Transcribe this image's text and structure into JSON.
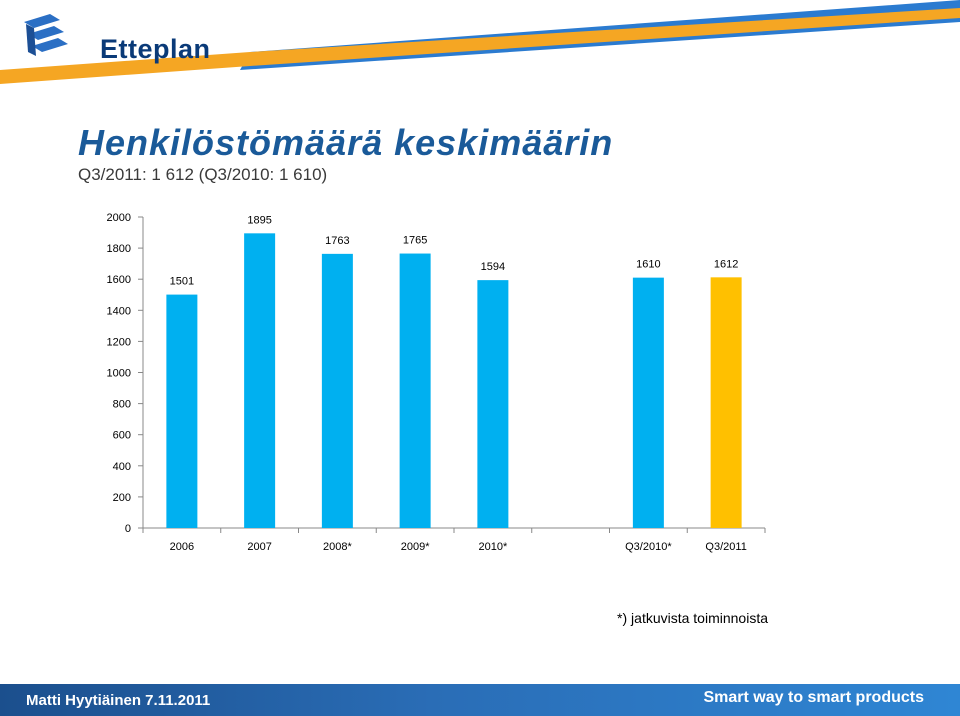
{
  "logo": {
    "text": "Etteplan"
  },
  "colors": {
    "bar": "#00b0f0",
    "highlight": "#ffc000",
    "header_blue": "#2b7bd0",
    "header_orange": "#f5a623"
  },
  "footer": {
    "author_date": "Matti Hyytiäinen 7.11.2011",
    "slogan": "Smart way to smart products"
  },
  "chart_data": {
    "type": "bar",
    "title": "Henkilöstömäärä keskimäärin",
    "subtitle": "Q3/2011: 1 612 (Q3/2010: 1 610)",
    "categories": [
      "2006",
      "2007",
      "2008*",
      "2009*",
      "2010*",
      "",
      "Q3/2010*",
      "Q3/2011"
    ],
    "values": [
      1501,
      1895,
      1763,
      1765,
      1594,
      null,
      1610,
      1612
    ],
    "highlight_index": 7,
    "ylim": [
      0,
      2000
    ],
    "yticks": [
      0,
      200,
      400,
      600,
      800,
      1000,
      1200,
      1400,
      1600,
      1800,
      2000
    ],
    "grid": false,
    "xlabel": "",
    "ylabel": "",
    "footnote": "*) jatkuvista toiminnoista"
  }
}
